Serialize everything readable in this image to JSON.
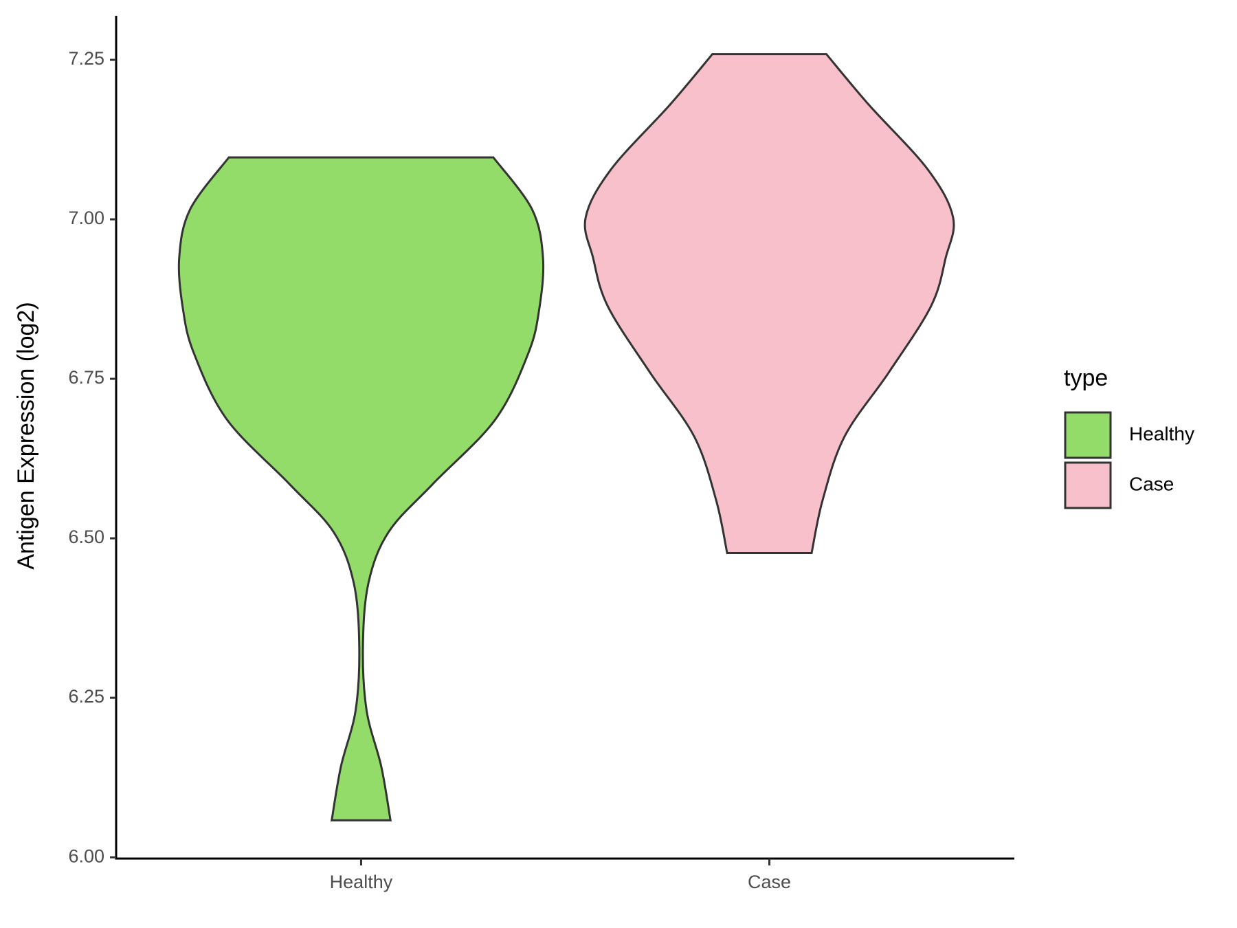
{
  "chart_data": {
    "type": "violin",
    "y_label": "Antigen Expression (log2)",
    "categories": [
      "Healthy",
      "Case"
    ],
    "legend_title": "type",
    "legend_position": "right",
    "series": [
      {
        "name": "Healthy",
        "color": "#93dc6a",
        "y": [
          6.058,
          6.142,
          6.23,
          6.33,
          6.43,
          6.51,
          6.585,
          6.686,
          6.79,
          6.86,
          6.94,
          7.016,
          7.097
        ],
        "widths": [
          0.16,
          0.11,
          0.03,
          0.01,
          0.04,
          0.15,
          0.39,
          0.73,
          0.91,
          0.97,
          0.99,
          0.93,
          0.72
        ]
      },
      {
        "name": "Case",
        "color": "#f7c0cb",
        "y": [
          6.477,
          6.56,
          6.66,
          6.76,
          6.864,
          6.94,
          7.003,
          7.079,
          7.18,
          7.259
        ],
        "widths": [
          0.23,
          0.29,
          0.41,
          0.65,
          0.88,
          0.96,
          1.0,
          0.86,
          0.54,
          0.31
        ]
      }
    ],
    "ylim": [
      5.998,
      7.319
    ],
    "yticks": [
      {
        "value": 6,
        "label": "6.00"
      },
      {
        "value": 6.25,
        "label": "6.25"
      },
      {
        "value": 6.5,
        "label": "6.50"
      },
      {
        "value": 6.75,
        "label": "6.75"
      },
      {
        "value": 7,
        "label": "7.00"
      },
      {
        "value": 7.25,
        "label": "7.25"
      }
    ],
    "grid": false
  }
}
